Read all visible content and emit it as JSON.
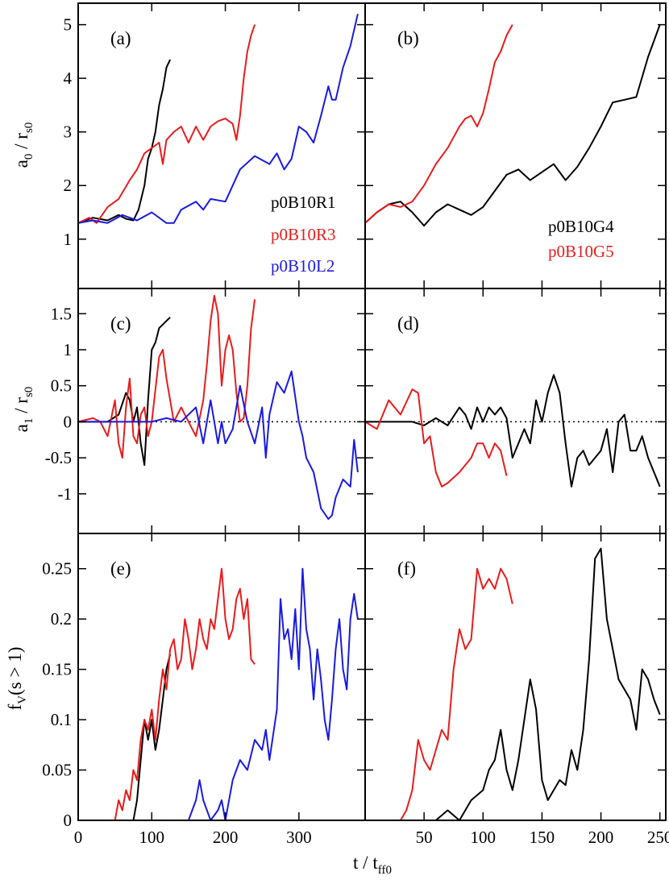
{
  "figure": {
    "xlabel_main": "t / t",
    "xlabel_sub": "ff0",
    "colors": {
      "black": "#000000",
      "red": "#e81c1c",
      "blue": "#1a1ae0"
    }
  },
  "chart_data": [
    {
      "id": "a",
      "type": "line",
      "label": "(a)",
      "ylabel_main": "a",
      "ylabel_sub": "0",
      "ylabel_rest": " / r",
      "ylabel_sub2": "s0",
      "xlim": [
        0,
        390
      ],
      "ylim": [
        0.08,
        5.4
      ],
      "yticks": [
        1,
        2,
        3,
        4,
        5
      ],
      "ytick_labels": [
        "1",
        "2",
        "3",
        "4",
        "5"
      ],
      "xticks": [
        0,
        100,
        200,
        300
      ],
      "xtick_labels": [],
      "legend": [
        "p0B10R1",
        "p0B10R3",
        "p0B10L2"
      ],
      "series": [
        {
          "name": "p0B10R1",
          "color": "#000000",
          "x": [
            0,
            20,
            40,
            55,
            65,
            75,
            82,
            90,
            95,
            100,
            105,
            110,
            115,
            120,
            125
          ],
          "y": [
            1.3,
            1.4,
            1.35,
            1.45,
            1.38,
            1.35,
            1.55,
            2.0,
            2.5,
            2.7,
            3.0,
            3.5,
            3.8,
            4.2,
            4.35
          ]
        },
        {
          "name": "p0B10R3",
          "color": "#e81c1c",
          "x": [
            0,
            15,
            25,
            40,
            55,
            70,
            80,
            90,
            100,
            110,
            115,
            120,
            130,
            140,
            150,
            160,
            170,
            180,
            190,
            200,
            210,
            215,
            220,
            225,
            230,
            235,
            240
          ],
          "y": [
            1.3,
            1.4,
            1.3,
            1.6,
            1.75,
            2.1,
            2.3,
            2.6,
            2.7,
            2.8,
            2.4,
            2.85,
            3.0,
            3.1,
            2.8,
            3.1,
            2.85,
            3.1,
            3.2,
            3.25,
            3.15,
            2.85,
            3.3,
            4.0,
            4.5,
            4.8,
            5.0
          ]
        },
        {
          "name": "p0B10L2",
          "color": "#1a1ae0",
          "x": [
            0,
            20,
            40,
            60,
            80,
            100,
            120,
            130,
            140,
            160,
            170,
            180,
            200,
            210,
            220,
            240,
            260,
            270,
            280,
            290,
            300,
            310,
            320,
            330,
            340,
            345,
            350,
            360,
            370,
            380
          ],
          "y": [
            1.3,
            1.35,
            1.3,
            1.45,
            1.35,
            1.5,
            1.3,
            1.3,
            1.55,
            1.7,
            1.55,
            1.75,
            1.7,
            2.0,
            2.3,
            2.55,
            2.4,
            2.6,
            2.3,
            2.5,
            3.1,
            3.0,
            2.8,
            3.3,
            3.85,
            3.6,
            3.6,
            4.2,
            4.6,
            5.2
          ]
        }
      ]
    },
    {
      "id": "b",
      "type": "line",
      "label": "(b)",
      "xlim": [
        0,
        255
      ],
      "ylim": [
        0.08,
        5.4
      ],
      "yticks": [
        1,
        2,
        3,
        4,
        5
      ],
      "ytick_labels": [],
      "xticks": [
        50,
        100,
        150,
        200,
        250
      ],
      "xtick_labels": [],
      "legend": [
        "p0B10G4",
        "p0B10G5"
      ],
      "series": [
        {
          "name": "p0B10G4",
          "color": "#000000",
          "x": [
            0,
            10,
            20,
            30,
            40,
            50,
            60,
            70,
            80,
            90,
            100,
            110,
            120,
            130,
            140,
            150,
            160,
            170,
            180,
            190,
            200,
            210,
            220,
            230,
            240,
            250
          ],
          "y": [
            1.3,
            1.5,
            1.65,
            1.7,
            1.5,
            1.25,
            1.5,
            1.65,
            1.55,
            1.45,
            1.6,
            1.9,
            2.2,
            2.3,
            2.1,
            2.25,
            2.4,
            2.1,
            2.35,
            2.7,
            3.1,
            3.55,
            3.6,
            3.65,
            4.4,
            5.0
          ]
        },
        {
          "name": "p0B10G5",
          "color": "#e81c1c",
          "x": [
            0,
            10,
            20,
            30,
            40,
            50,
            60,
            70,
            80,
            85,
            90,
            95,
            100,
            105,
            110,
            115,
            120,
            125
          ],
          "y": [
            1.3,
            1.5,
            1.65,
            1.6,
            1.7,
            2.0,
            2.4,
            2.7,
            3.1,
            3.25,
            3.3,
            3.1,
            3.35,
            3.8,
            4.3,
            4.5,
            4.8,
            5.0
          ]
        }
      ]
    },
    {
      "id": "c",
      "type": "line",
      "label": "(c)",
      "ylabel_main": "a",
      "ylabel_sub": "1",
      "ylabel_rest": " / r",
      "ylabel_sub2": "s0",
      "xlim": [
        0,
        390
      ],
      "ylim": [
        -1.55,
        1.85
      ],
      "zero_line": true,
      "yticks": [
        -1,
        -0.5,
        0,
        0.5,
        1,
        1.5
      ],
      "ytick_labels": [
        "-1",
        "-0.5",
        "0",
        "0.5",
        "1",
        "1.5"
      ],
      "xticks": [
        0,
        100,
        200,
        300
      ],
      "xtick_labels": [],
      "series": [
        {
          "name": "p0B10R1",
          "color": "#000000",
          "x": [
            0,
            40,
            55,
            65,
            70,
            75,
            80,
            85,
            90,
            95,
            100,
            105,
            110,
            115,
            120,
            125
          ],
          "y": [
            0,
            0,
            0.1,
            0.4,
            0.3,
            0.0,
            0.2,
            -0.3,
            -0.6,
            0.3,
            1.0,
            1.1,
            1.3,
            1.35,
            1.4,
            1.45
          ]
        },
        {
          "name": "p0B10R3",
          "color": "#e81c1c",
          "x": [
            0,
            20,
            30,
            40,
            50,
            55,
            60,
            65,
            70,
            75,
            80,
            85,
            90,
            95,
            100,
            110,
            115,
            120,
            130,
            140,
            150,
            160,
            170,
            175,
            180,
            185,
            190,
            195,
            200,
            205,
            210,
            215,
            220,
            225,
            230,
            235,
            240
          ],
          "y": [
            0,
            0.05,
            0,
            -0.2,
            0.3,
            -0.3,
            -0.5,
            0.2,
            0.6,
            -0.2,
            -0.3,
            0.1,
            0.2,
            -0.2,
            0.0,
            0.9,
            1.0,
            0.6,
            0.0,
            0.2,
            0.0,
            -0.2,
            0.3,
            0.8,
            1.4,
            1.75,
            1.5,
            0.5,
            1.0,
            1.2,
            1.0,
            0.4,
            0.0,
            0.05,
            0.5,
            1.3,
            1.7
          ]
        },
        {
          "name": "p0B10L2",
          "color": "#1a1ae0",
          "x": [
            0,
            100,
            120,
            140,
            160,
            170,
            175,
            180,
            190,
            195,
            200,
            210,
            220,
            230,
            240,
            250,
            255,
            260,
            270,
            280,
            290,
            300,
            305,
            310,
            320,
            330,
            340,
            345,
            350,
            360,
            370,
            375,
            380
          ],
          "y": [
            0,
            0,
            0.05,
            0.0,
            0.2,
            -0.3,
            0.0,
            0.3,
            -0.3,
            0.0,
            -0.3,
            -0.1,
            0.5,
            0.0,
            -0.3,
            0.2,
            -0.5,
            0.1,
            0.55,
            0.4,
            0.7,
            0.0,
            -0.2,
            -0.5,
            -0.7,
            -1.2,
            -1.35,
            -1.3,
            -1.05,
            -0.8,
            -0.9,
            -0.25,
            -0.7
          ]
        }
      ]
    },
    {
      "id": "d",
      "type": "line",
      "label": "(d)",
      "xlim": [
        0,
        255
      ],
      "ylim": [
        -1.55,
        1.85
      ],
      "zero_line": true,
      "yticks": [
        -1,
        -0.5,
        0,
        0.5,
        1,
        1.5
      ],
      "ytick_labels": [],
      "xticks": [
        50,
        100,
        150,
        200,
        250
      ],
      "xtick_labels": [],
      "series": [
        {
          "name": "p0B10G4",
          "color": "#000000",
          "x": [
            0,
            40,
            50,
            60,
            70,
            80,
            85,
            90,
            95,
            100,
            105,
            110,
            115,
            120,
            125,
            130,
            135,
            140,
            145,
            150,
            155,
            160,
            165,
            170,
            175,
            180,
            185,
            190,
            195,
            200,
            205,
            210,
            215,
            220,
            225,
            230,
            235,
            240,
            245,
            250
          ],
          "y": [
            0,
            0,
            -0.05,
            0.05,
            -0.05,
            0.2,
            0.1,
            -0.1,
            0.2,
            0.0,
            0.2,
            0.1,
            0.2,
            0.05,
            -0.5,
            -0.3,
            -0.1,
            -0.3,
            0.3,
            0.0,
            0.4,
            0.65,
            0.4,
            -0.3,
            -0.9,
            -0.5,
            -0.4,
            -0.6,
            -0.5,
            -0.4,
            -0.1,
            -0.7,
            0.0,
            0.1,
            -0.4,
            -0.4,
            -0.2,
            -0.5,
            -0.7,
            -0.9
          ]
        },
        {
          "name": "p0B10G5",
          "color": "#e81c1c",
          "x": [
            0,
            10,
            20,
            30,
            40,
            45,
            50,
            55,
            60,
            65,
            70,
            80,
            90,
            95,
            100,
            105,
            110,
            115,
            120
          ],
          "y": [
            0,
            -0.1,
            0.3,
            0.1,
            0.45,
            0.4,
            -0.3,
            -0.2,
            -0.7,
            -0.9,
            -0.85,
            -0.7,
            -0.5,
            -0.3,
            -0.3,
            -0.5,
            -0.3,
            -0.4,
            -0.75
          ]
        }
      ]
    },
    {
      "id": "e",
      "type": "line",
      "label": "(e)",
      "ylabel_main": "f",
      "ylabel_sub": "V",
      "ylabel_rest": "(s > 1)",
      "ylabel_sub2": "",
      "xlim": [
        0,
        390
      ],
      "ylim": [
        0,
        0.285
      ],
      "yticks": [
        0,
        0.05,
        0.1,
        0.15,
        0.2,
        0.25
      ],
      "ytick_labels": [
        "0",
        "0.05",
        "0.1",
        "0.15",
        "0.2",
        "0.25"
      ],
      "xticks": [
        0,
        100,
        200,
        300
      ],
      "xtick_labels": [
        "0",
        "100",
        "200",
        "300"
      ],
      "series": [
        {
          "name": "p0B10R1",
          "color": "#000000",
          "x": [
            75,
            80,
            85,
            90,
            95,
            100,
            105,
            110,
            115,
            120,
            125
          ],
          "y": [
            0,
            0.02,
            0.06,
            0.1,
            0.08,
            0.1,
            0.07,
            0.09,
            0.12,
            0.15,
            0.165
          ]
        },
        {
          "name": "p0B10R3",
          "color": "#e81c1c",
          "x": [
            50,
            55,
            60,
            65,
            70,
            75,
            80,
            85,
            90,
            95,
            100,
            105,
            110,
            115,
            120,
            125,
            130,
            135,
            140,
            145,
            150,
            155,
            160,
            165,
            170,
            175,
            180,
            185,
            190,
            195,
            200,
            205,
            210,
            215,
            220,
            225,
            230,
            235,
            240
          ],
          "y": [
            0,
            0.02,
            0.01,
            0.03,
            0.02,
            0.05,
            0.04,
            0.08,
            0.1,
            0.09,
            0.11,
            0.08,
            0.12,
            0.15,
            0.13,
            0.17,
            0.18,
            0.15,
            0.16,
            0.2,
            0.18,
            0.15,
            0.17,
            0.2,
            0.18,
            0.17,
            0.2,
            0.19,
            0.22,
            0.25,
            0.2,
            0.18,
            0.19,
            0.22,
            0.23,
            0.2,
            0.22,
            0.16,
            0.155
          ]
        },
        {
          "name": "p0B10L2",
          "color": "#1a1ae0",
          "x": [
            150,
            155,
            160,
            165,
            170,
            180,
            190,
            195,
            200,
            210,
            220,
            230,
            240,
            250,
            255,
            260,
            270,
            275,
            280,
            285,
            290,
            295,
            300,
            305,
            310,
            315,
            320,
            325,
            330,
            335,
            340,
            345,
            350,
            355,
            360,
            365,
            370,
            375,
            380
          ],
          "y": [
            0,
            0.01,
            0.02,
            0.04,
            0.02,
            0.0,
            0.01,
            0.02,
            0.0,
            0.04,
            0.06,
            0.05,
            0.08,
            0.07,
            0.09,
            0.06,
            0.11,
            0.22,
            0.18,
            0.19,
            0.16,
            0.21,
            0.15,
            0.25,
            0.19,
            0.17,
            0.12,
            0.17,
            0.14,
            0.1,
            0.08,
            0.12,
            0.17,
            0.2,
            0.15,
            0.13,
            0.2,
            0.225,
            0.2
          ]
        }
      ]
    },
    {
      "id": "f",
      "type": "line",
      "label": "(f)",
      "xlim": [
        0,
        255
      ],
      "ylim": [
        0,
        0.285
      ],
      "yticks": [
        0.05,
        0.1,
        0.15,
        0.2,
        0.25
      ],
      "ytick_labels": [],
      "xticks": [
        50,
        100,
        150,
        200,
        250
      ],
      "xtick_labels": [
        "50",
        "100",
        "150",
        "200",
        "250"
      ],
      "series": [
        {
          "name": "p0B10G4",
          "color": "#000000",
          "x": [
            60,
            70,
            80,
            90,
            100,
            105,
            110,
            115,
            120,
            125,
            130,
            135,
            140,
            145,
            150,
            155,
            160,
            165,
            170,
            175,
            180,
            185,
            190,
            195,
            200,
            205,
            210,
            215,
            220,
            225,
            230,
            235,
            240,
            245,
            250
          ],
          "y": [
            0,
            0.01,
            0.0,
            0.02,
            0.03,
            0.05,
            0.06,
            0.09,
            0.05,
            0.03,
            0.06,
            0.1,
            0.14,
            0.11,
            0.04,
            0.02,
            0.03,
            0.04,
            0.035,
            0.07,
            0.05,
            0.09,
            0.16,
            0.26,
            0.27,
            0.2,
            0.17,
            0.14,
            0.13,
            0.12,
            0.09,
            0.15,
            0.14,
            0.12,
            0.105
          ]
        },
        {
          "name": "p0B10G5",
          "color": "#e81c1c",
          "x": [
            0,
            10,
            20,
            30,
            35,
            40,
            45,
            50,
            55,
            60,
            65,
            70,
            75,
            80,
            85,
            90,
            95,
            100,
            105,
            110,
            115,
            120,
            125
          ],
          "y": [
            0,
            0.0,
            0.0,
            0.0,
            0.01,
            0.03,
            0.08,
            0.06,
            0.05,
            0.07,
            0.09,
            0.08,
            0.15,
            0.19,
            0.17,
            0.18,
            0.25,
            0.23,
            0.24,
            0.23,
            0.25,
            0.24,
            0.215
          ]
        }
      ]
    }
  ]
}
